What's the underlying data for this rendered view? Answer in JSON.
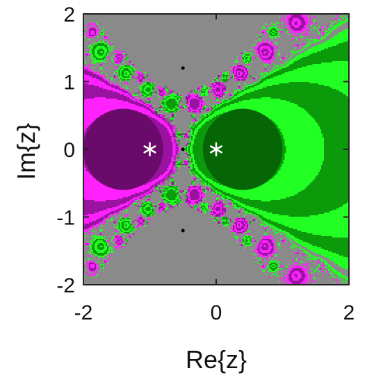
{
  "chart_data": {
    "type": "heatmap",
    "title": "",
    "xlabel": "Re{z}",
    "ylabel": "Im{z}",
    "xlim": [
      -2,
      2
    ],
    "ylim": [
      -2,
      2
    ],
    "x_ticks": [
      {
        "value": -2,
        "label": "-2"
      },
      {
        "value": 0,
        "label": "0"
      },
      {
        "value": 2,
        "label": "2"
      }
    ],
    "y_ticks": [
      {
        "value": 2,
        "label": "2"
      },
      {
        "value": 1,
        "label": "1"
      },
      {
        "value": 0,
        "label": "0"
      },
      {
        "value": -1,
        "label": "-1"
      },
      {
        "value": -2,
        "label": "-2"
      }
    ],
    "grid": false,
    "markers": [
      {
        "x": -1,
        "y": 0,
        "symbol": "*",
        "color": "#ffffff"
      },
      {
        "x": 0,
        "y": 0,
        "symbol": "*",
        "color": "#ffffff"
      }
    ],
    "fixed_points": [
      {
        "x": -0.5,
        "y": 1.2
      },
      {
        "x": -0.5,
        "y": 0
      },
      {
        "x": -0.5,
        "y": -1.2
      }
    ],
    "basins": [
      {
        "root_x": -1,
        "root_y": 0,
        "fast_color": "#9a12a0",
        "slow_color": "#ff22ff",
        "core_color": "#6a0a6a",
        "core_center": [
          -1.4,
          0
        ],
        "core_radius": 0.6
      },
      {
        "root_x": 0,
        "root_y": 0,
        "fast_color": "#0a9a0a",
        "slow_color": "#22ff22",
        "core_color": "#066606",
        "core_center": [
          0.4,
          0
        ],
        "core_radius": 0.6
      }
    ],
    "palette": {
      "stripe": "#8a8a8a",
      "background": "#ffffff"
    }
  }
}
